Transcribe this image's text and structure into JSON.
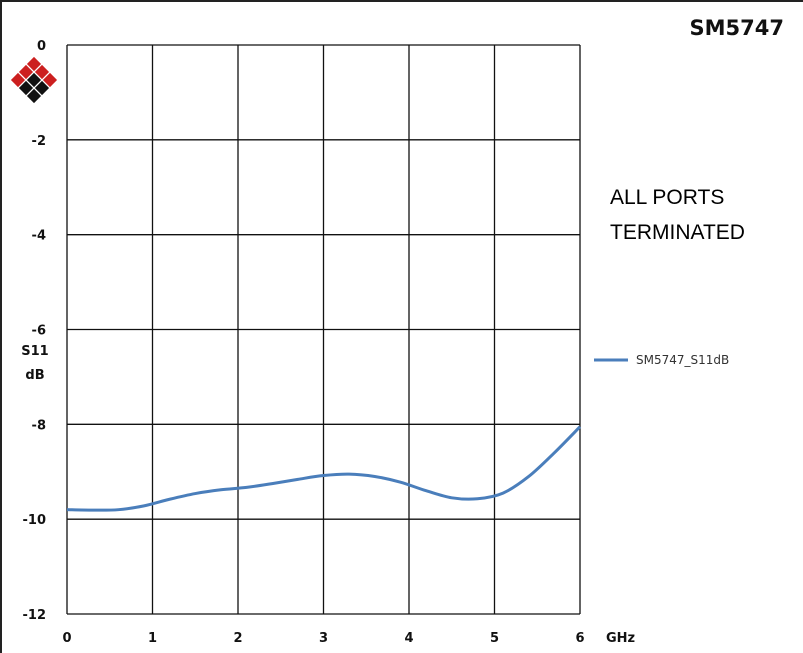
{
  "chart_data": {
    "type": "line",
    "title": "SM5747",
    "annotation": [
      "ALL PORTS",
      "TERMINATED"
    ],
    "ylabel": [
      "S11",
      "dB"
    ],
    "xlabel": "GHz",
    "xlim": [
      0,
      6
    ],
    "ylim": [
      -12,
      0
    ],
    "x_ticks": [
      "0",
      "1",
      "2",
      "3",
      "4",
      "5",
      "6"
    ],
    "y_ticks": [
      "0",
      "-2",
      "-4",
      "-6",
      "-8",
      "-10",
      "-12"
    ],
    "grid": true,
    "legend_position": "right",
    "series": [
      {
        "name": "SM5747_S11dB",
        "color": "#4a7ebb",
        "x": [
          0,
          0.3,
          0.6,
          0.9,
          1.2,
          1.5,
          1.8,
          2.1,
          2.4,
          2.7,
          3.0,
          3.3,
          3.6,
          3.9,
          4.2,
          4.5,
          4.8,
          5.1,
          5.4,
          5.7,
          6.0
        ],
        "y": [
          -9.8,
          -9.81,
          -9.8,
          -9.72,
          -9.58,
          -9.46,
          -9.38,
          -9.33,
          -9.25,
          -9.16,
          -9.08,
          -9.05,
          -9.1,
          -9.22,
          -9.4,
          -9.55,
          -9.57,
          -9.45,
          -9.1,
          -8.6,
          -8.05
        ]
      }
    ]
  },
  "logo": {
    "name": "company-logo",
    "colors": [
      "#cc1f1f",
      "#111111"
    ]
  }
}
